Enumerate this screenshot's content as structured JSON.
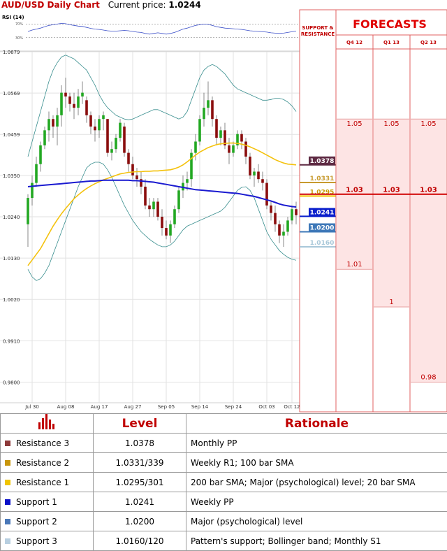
{
  "header": {
    "title": "AUD/USD Daily Chart",
    "price_label": "Current price:",
    "price_value": "1.0244"
  },
  "rsi_label": "RSI (14)",
  "rsi_levels": [
    "70%",
    "30%"
  ],
  "sr_header": "SUPPORT & RESISTANCE",
  "sr_levels": [
    {
      "value": "1.0378",
      "color": "#5e2a43",
      "text_color": "#ffffff"
    },
    {
      "value": "1.0331",
      "color": "#c79a2e",
      "text_color": "#c79a2e"
    },
    {
      "value": "1.0295",
      "color": "#f2c200",
      "text_color": "#c79a00"
    },
    {
      "value": "1.0241",
      "color": "#0a1fcc",
      "text_color": "#ffffff"
    },
    {
      "value": "1.0200",
      "color": "#3e78b8",
      "text_color": "#ffffff"
    },
    {
      "value": "1.0160",
      "color": "#a9c8d9",
      "text_color": "#a9c8d9"
    }
  ],
  "forecasts_title": "FORECASTS",
  "forecast_columns": [
    {
      "label": "Q4 12",
      "high": "1.05",
      "mid": "1.03",
      "low": "1.01"
    },
    {
      "label": "Q1 13",
      "high": "1.05",
      "mid": "1.03",
      "low": "1"
    },
    {
      "label": "Q2 13",
      "high": "1.05",
      "mid": "1.03",
      "low": "0.98"
    }
  ],
  "table": {
    "col_level": "Level",
    "col_rationale": "Rationale",
    "rows": [
      {
        "name": "Resistance 3",
        "level": "1.0378",
        "rationale": "Monthly PP",
        "color": "#8e3a3a"
      },
      {
        "name": "Resistance 2",
        "level": "1.0331/339",
        "rationale": "Weekly R1; 100 bar SMA",
        "color": "#c8960c"
      },
      {
        "name": "Resistance 1",
        "level": "1.0295/301",
        "rationale": "200 bar SMA; Major (psychological) level; 20 bar SMA",
        "color": "#f0c400"
      },
      {
        "name": "Support 1",
        "level": "1.0241",
        "rationale": "Weekly PP",
        "color": "#0a10c8"
      },
      {
        "name": "Support 2",
        "level": "1.0200",
        "rationale": "Major (psychological) level",
        "color": "#4a78b8"
      },
      {
        "name": "Support 3",
        "level": "1.0160/120",
        "rationale": "Pattern's support; Bollinger band; Monthly S1",
        "color": "#b8cfe0"
      }
    ]
  },
  "chart_data": {
    "type": "candlestick",
    "ylim": [
      0.9745,
      1.0679
    ],
    "yticks": [
      "1.0679",
      "1.0569",
      "1.0459",
      "1.0350",
      "1.0240",
      "1.0130",
      "1.0020",
      "0.9910",
      "0.9800"
    ],
    "xticks": [
      "Jul 30",
      "Aug 08",
      "Aug 17",
      "Aug 27",
      "Sep 05",
      "Sep 14",
      "Sep 24",
      "Oct 03",
      "Oct 12"
    ],
    "candles": [
      [
        1.022,
        1.03,
        1.016,
        1.029
      ],
      [
        1.029,
        1.035,
        1.027,
        1.033
      ],
      [
        1.033,
        1.04,
        1.032,
        1.038
      ],
      [
        1.038,
        1.044,
        1.036,
        1.043
      ],
      [
        1.043,
        1.048,
        1.042,
        1.047
      ],
      [
        1.047,
        1.052,
        1.044,
        1.05
      ],
      [
        1.05,
        1.051,
        1.045,
        1.048
      ],
      [
        1.048,
        1.053,
        1.043,
        1.051
      ],
      [
        1.051,
        1.059,
        1.048,
        1.057
      ],
      [
        1.057,
        1.061,
        1.053,
        1.056
      ],
      [
        1.056,
        1.057,
        1.052,
        1.054
      ],
      [
        1.054,
        1.057,
        1.05,
        1.053
      ],
      [
        1.053,
        1.058,
        1.051,
        1.056
      ],
      [
        1.056,
        1.06,
        1.054,
        1.057
      ],
      [
        1.055,
        1.056,
        1.049,
        1.051
      ],
      [
        1.051,
        1.052,
        1.046,
        1.048
      ],
      [
        1.048,
        1.05,
        1.044,
        1.047
      ],
      [
        1.047,
        1.051,
        1.045,
        1.05
      ],
      [
        1.05,
        1.052,
        1.047,
        1.051
      ],
      [
        1.05,
        1.05,
        1.04,
        1.041
      ],
      [
        1.041,
        1.044,
        1.039,
        1.042
      ],
      [
        1.042,
        1.046,
        1.041,
        1.045
      ],
      [
        1.045,
        1.05,
        1.044,
        1.049
      ],
      [
        1.048,
        1.049,
        1.04,
        1.041
      ],
      [
        1.041,
        1.042,
        1.036,
        1.038
      ],
      [
        1.038,
        1.04,
        1.034,
        1.035
      ],
      [
        1.035,
        1.037,
        1.032,
        1.034
      ],
      [
        1.034,
        1.036,
        1.03,
        1.032
      ],
      [
        1.032,
        1.034,
        1.026,
        1.027
      ],
      [
        1.027,
        1.029,
        1.024,
        1.026
      ],
      [
        1.026,
        1.029,
        1.024,
        1.028
      ],
      [
        1.028,
        1.029,
        1.023,
        1.024
      ],
      [
        1.024,
        1.026,
        1.019,
        1.021
      ],
      [
        1.021,
        1.023,
        1.018,
        1.019
      ],
      [
        1.019,
        1.023,
        1.017,
        1.022
      ],
      [
        1.022,
        1.027,
        1.021,
        1.026
      ],
      [
        1.026,
        1.032,
        1.025,
        1.031
      ],
      [
        1.031,
        1.035,
        1.029,
        1.033
      ],
      [
        1.033,
        1.036,
        1.031,
        1.034
      ],
      [
        1.034,
        1.042,
        1.032,
        1.041
      ],
      [
        1.041,
        1.046,
        1.039,
        1.044
      ],
      [
        1.044,
        1.051,
        1.043,
        1.05
      ],
      [
        1.05,
        1.057,
        1.048,
        1.053
      ],
      [
        1.053,
        1.06,
        1.051,
        1.055
      ],
      [
        1.055,
        1.056,
        1.048,
        1.05
      ],
      [
        1.05,
        1.051,
        1.043,
        1.045
      ],
      [
        1.045,
        1.048,
        1.043,
        1.047
      ],
      [
        1.047,
        1.049,
        1.042,
        1.043
      ],
      [
        1.043,
        1.045,
        1.038,
        1.041
      ],
      [
        1.041,
        1.044,
        1.04,
        1.043
      ],
      [
        1.043,
        1.047,
        1.042,
        1.046
      ],
      [
        1.046,
        1.047,
        1.042,
        1.044
      ],
      [
        1.044,
        1.045,
        1.038,
        1.04
      ],
      [
        1.04,
        1.041,
        1.034,
        1.035
      ],
      [
        1.035,
        1.037,
        1.032,
        1.036
      ],
      [
        1.036,
        1.038,
        1.033,
        1.034
      ],
      [
        1.034,
        1.036,
        1.031,
        1.033
      ],
      [
        1.033,
        1.034,
        1.026,
        1.027
      ],
      [
        1.027,
        1.028,
        1.023,
        1.025
      ],
      [
        1.025,
        1.027,
        1.02,
        1.022
      ],
      [
        1.022,
        1.023,
        1.017,
        1.019
      ],
      [
        1.019,
        1.022,
        1.016,
        1.02
      ],
      [
        1.02,
        1.024,
        1.019,
        1.023
      ],
      [
        1.023,
        1.027,
        1.022,
        1.026
      ],
      [
        1.026,
        1.028,
        1.022,
        1.0244
      ]
    ],
    "sma_yellow": [
      1.011,
      1.0125,
      1.014,
      1.0155,
      1.0175,
      1.0195,
      1.0215,
      1.0232,
      1.0248,
      1.0262,
      1.0275,
      1.0288,
      1.0298,
      1.0307,
      1.0315,
      1.0322,
      1.0328,
      1.0333,
      1.0338,
      1.0342,
      1.0346,
      1.035,
      1.0354,
      1.0356,
      1.0358,
      1.0359,
      1.036,
      1.036,
      1.0361,
      1.0361,
      1.0362,
      1.0362,
      1.0363,
      1.0364,
      1.0365,
      1.0368,
      1.0372,
      1.0378,
      1.0386,
      1.0395,
      1.0404,
      1.0412,
      1.0418,
      1.0424,
      1.0428,
      1.0432,
      1.0434,
      1.0435,
      1.0436,
      1.0436,
      1.0435,
      1.0433,
      1.043,
      1.0426,
      1.0421,
      1.0416,
      1.041,
      1.0404,
      1.0398,
      1.0392,
      1.0387,
      1.0383,
      1.038,
      1.0379,
      1.0378
    ],
    "sma_blue": [
      1.032,
      1.0321,
      1.0322,
      1.0323,
      1.0324,
      1.0325,
      1.0326,
      1.0327,
      1.0328,
      1.0329,
      1.033,
      1.0331,
      1.0332,
      1.0333,
      1.0334,
      1.0335,
      1.0335,
      1.0336,
      1.0337,
      1.0337,
      1.0337,
      1.0337,
      1.0337,
      1.0337,
      1.0337,
      1.0336,
      1.0336,
      1.0335,
      1.0334,
      1.0333,
      1.0332,
      1.033,
      1.0328,
      1.0326,
      1.0324,
      1.0322,
      1.032,
      1.0318,
      1.0316,
      1.0314,
      1.0312,
      1.0311,
      1.031,
      1.0309,
      1.0308,
      1.0307,
      1.0306,
      1.0305,
      1.0304,
      1.0303,
      1.0302,
      1.03,
      1.0298,
      1.0296,
      1.0294,
      1.0291,
      1.0288,
      1.0285,
      1.0282,
      1.0278,
      1.0274,
      1.0271,
      1.0269,
      1.0267,
      1.0266
    ],
    "bb_upper": [
      1.04,
      1.044,
      1.048,
      1.052,
      1.056,
      1.06,
      1.063,
      1.065,
      1.0665,
      1.067,
      1.0665,
      1.066,
      1.065,
      1.064,
      1.063,
      1.061,
      1.059,
      1.0565,
      1.0545,
      1.053,
      1.052,
      1.051,
      1.0505,
      1.05,
      1.0498,
      1.05,
      1.0505,
      1.051,
      1.0515,
      1.052,
      1.0525,
      1.0525,
      1.052,
      1.0515,
      1.051,
      1.0505,
      1.05,
      1.0505,
      1.052,
      1.055,
      1.058,
      1.061,
      1.063,
      1.064,
      1.0645,
      1.064,
      1.063,
      1.062,
      1.0605,
      1.059,
      1.058,
      1.0575,
      1.057,
      1.0565,
      1.056,
      1.0555,
      1.055,
      1.055,
      1.0552,
      1.0555,
      1.0555,
      1.0552,
      1.0545,
      1.0535,
      1.052
    ],
    "bb_lower": [
      1.01,
      1.008,
      1.007,
      1.0075,
      1.009,
      1.011,
      1.014,
      1.017,
      1.02,
      1.023,
      1.026,
      1.029,
      1.032,
      1.0345,
      1.037,
      1.038,
      1.0385,
      1.0385,
      1.038,
      1.0365,
      1.0345,
      1.032,
      1.0295,
      1.027,
      1.025,
      1.023,
      1.0215,
      1.02,
      1.019,
      1.018,
      1.0172,
      1.0165,
      1.016,
      1.016,
      1.0165,
      1.0175,
      1.019,
      1.0205,
      1.0215,
      1.022,
      1.0225,
      1.023,
      1.0235,
      1.024,
      1.0245,
      1.025,
      1.0255,
      1.0265,
      1.028,
      1.0295,
      1.031,
      1.0318,
      1.032,
      1.031,
      1.029,
      1.026,
      1.023,
      1.02,
      1.018,
      1.0165,
      1.015,
      1.014,
      1.0132,
      1.0127,
      1.0124
    ],
    "rsi": [
      48,
      52,
      55,
      58,
      62,
      66,
      68,
      70,
      72,
      71,
      68,
      66,
      64,
      63,
      60,
      57,
      55,
      54,
      52,
      50,
      49,
      49,
      50,
      51,
      50,
      48,
      46,
      45,
      42,
      40,
      42,
      44,
      42,
      40,
      42,
      45,
      50,
      55,
      58,
      62,
      66,
      68,
      70,
      69,
      66,
      62,
      60,
      58,
      57,
      56,
      55,
      54,
      52,
      50,
      49,
      48,
      47,
      46,
      44,
      43,
      42,
      43,
      45,
      47,
      49
    ]
  }
}
